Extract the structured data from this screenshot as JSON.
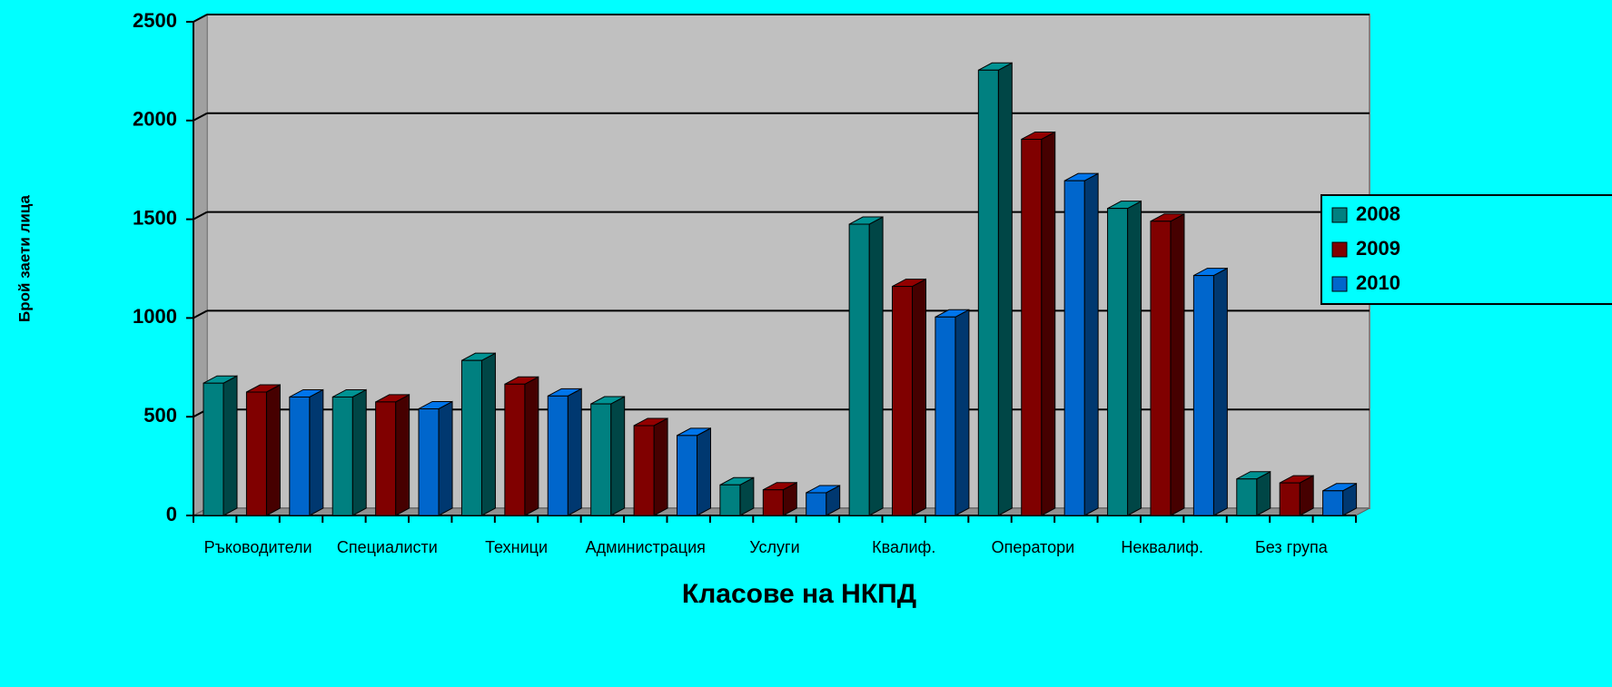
{
  "chart_data": {
    "type": "bar3d",
    "x_label": "Класове на НКПД",
    "y_label": "Брой заети лица",
    "categories": [
      "Ръководители",
      "Специалисти",
      "Техници",
      "Администрация",
      "Услуги",
      "Квалиф.",
      "Оператори",
      "Неквалиф.",
      "Без група"
    ],
    "series": [
      {
        "name": "2008",
        "color": "#008080",
        "values": [
          670,
          600,
          785,
          565,
          155,
          1475,
          2255,
          1555,
          185
        ]
      },
      {
        "name": "2009",
        "color": "#800000",
        "values": [
          625,
          575,
          665,
          455,
          130,
          1160,
          1905,
          1490,
          165
        ]
      },
      {
        "name": "2010",
        "color": "#0066cc",
        "values": [
          600,
          540,
          605,
          405,
          115,
          1005,
          1695,
          1215,
          125
        ]
      }
    ],
    "ylim": [
      0,
      2500
    ],
    "yticks": [
      0,
      500,
      1000,
      1500,
      2000,
      2500
    ],
    "grid": true,
    "legend": "right"
  }
}
